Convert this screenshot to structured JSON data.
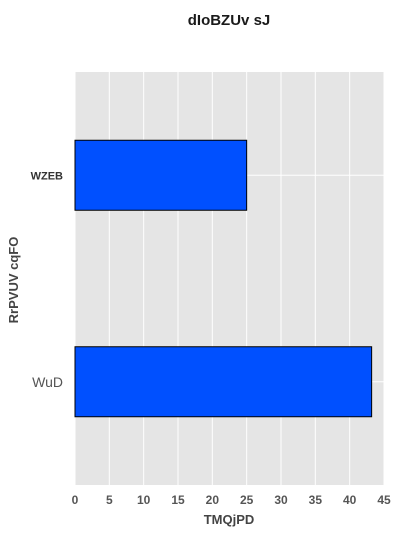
{
  "chart_data": {
    "type": "bar",
    "orientation": "horizontal",
    "title": "dIoBZUv sJ",
    "xlabel": "TMQjPD",
    "ylabel": "RrPVUV cqFO",
    "categories": [
      "WZEB",
      "WuD"
    ],
    "values": [
      25,
      43.2
    ],
    "xlim": [
      0,
      45
    ],
    "xticks": [
      "0",
      "5",
      "10",
      "15",
      "20",
      "25",
      "30",
      "35",
      "40",
      "45"
    ],
    "grid": true,
    "legend": "none",
    "colors": {
      "bar": "#0050ff",
      "bar_edge": "#000000",
      "plot_background": "#e5e5e5",
      "grid": "#ffffff"
    }
  }
}
